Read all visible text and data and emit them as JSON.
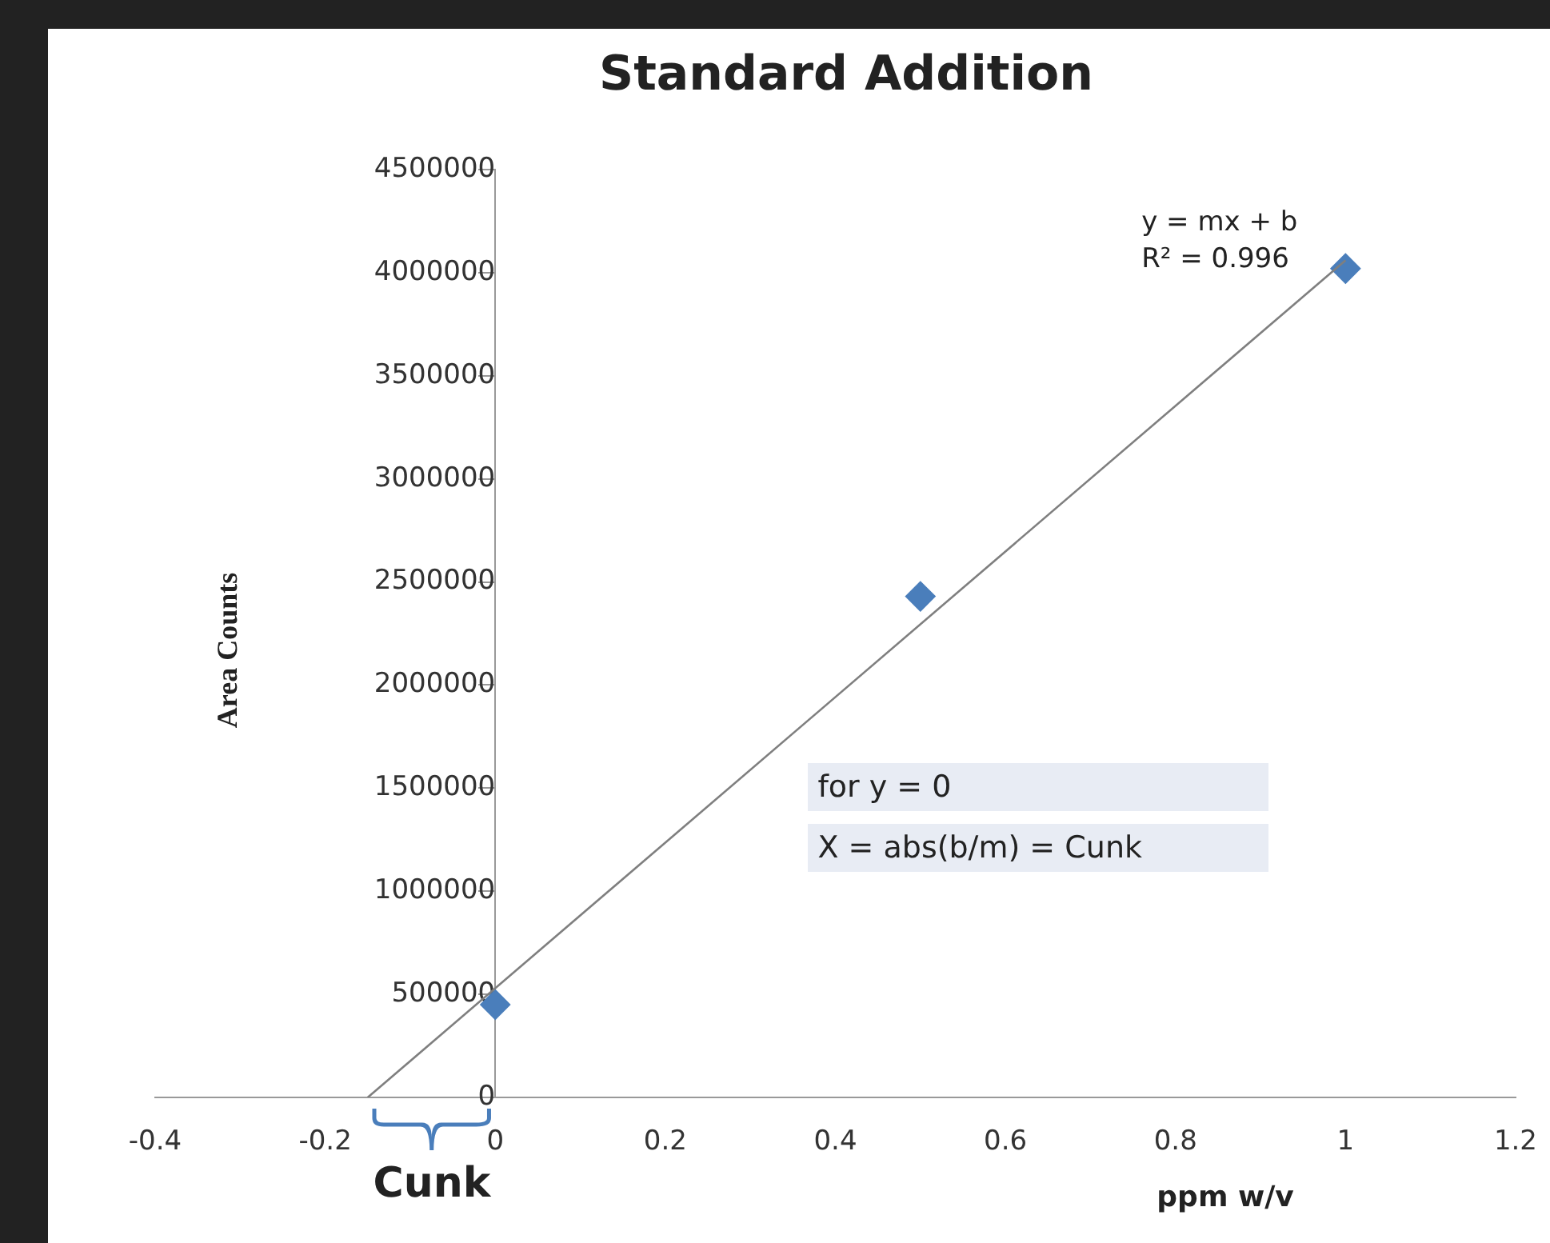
{
  "chart_data": {
    "type": "scatter",
    "title": "Standard Addition",
    "xlabel": "ppm w/v",
    "ylabel": "Area Counts",
    "xlim": [
      -0.4,
      1.2
    ],
    "xticks": [
      -0.4,
      -0.2,
      0,
      0.2,
      0.4,
      0.6,
      0.8,
      1,
      1.2
    ],
    "ylim": [
      0,
      4500000
    ],
    "yticks": [
      0,
      500000,
      1000000,
      1500000,
      2000000,
      2500000,
      3000000,
      3500000,
      4000000,
      4500000
    ],
    "grid": false,
    "legend": false,
    "series": [
      {
        "color": "#4a7ebb",
        "marker": "diamond",
        "x": [
          0,
          0.5,
          1
        ],
        "values": [
          450000,
          2430000,
          4020000
        ]
      },
      {
        "type": "line",
        "color": "#7f7f7f",
        "marker": "none",
        "x": [
          -0.15,
          1
        ],
        "values": [
          0,
          4060000
        ]
      }
    ],
    "annotations": [
      "y = mx + b",
      "R² = 0.996",
      "for y = 0",
      "X = abs(b/m) = Cunk",
      "Cunk"
    ]
  }
}
